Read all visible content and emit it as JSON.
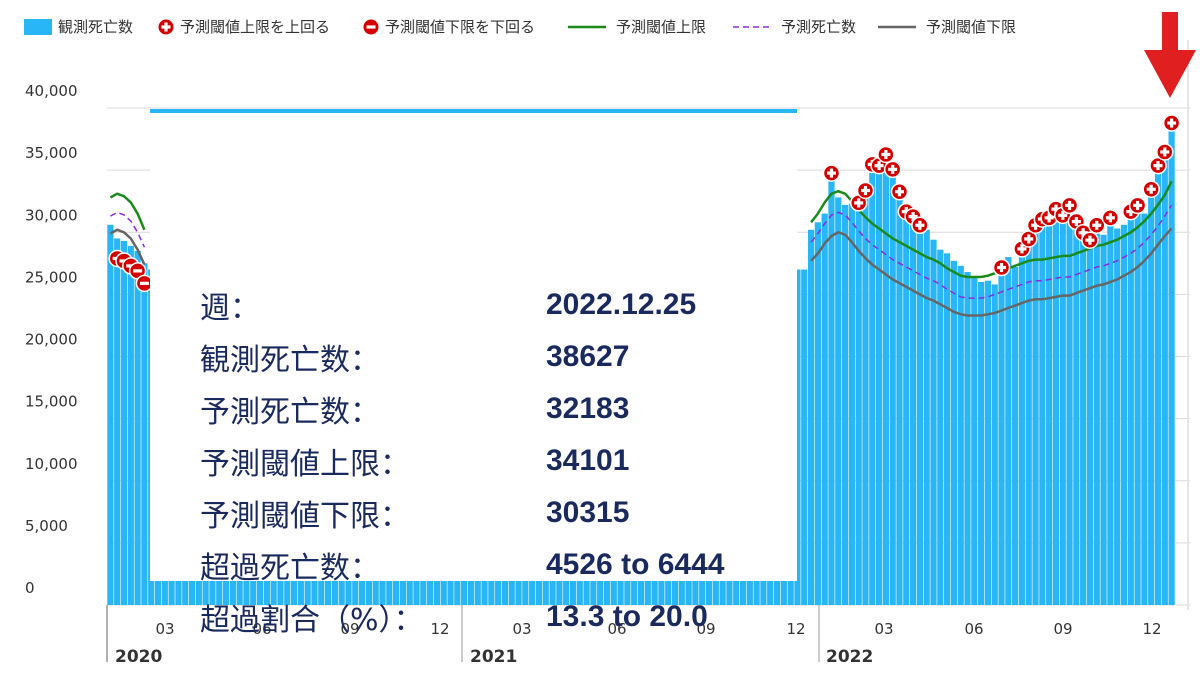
{
  "legend": [
    {
      "label": "観測死亡数",
      "kind": "bar",
      "color": "#29b6f6"
    },
    {
      "label": "予測閾値上限を上回る",
      "kind": "plus",
      "color": "#d50000"
    },
    {
      "label": "予測閾値下限を下回る",
      "kind": "minus",
      "color": "#d50000"
    },
    {
      "label": "予測閾値上限",
      "kind": "line",
      "color": "#1a8a1a"
    },
    {
      "label": "予測死亡数",
      "kind": "dash",
      "color": "#8a2be2"
    },
    {
      "label": "予測閾値下限",
      "kind": "line",
      "color": "#666666"
    }
  ],
  "tooltip": {
    "rows": [
      {
        "label": "週：",
        "value": "2022.12.25"
      },
      {
        "label": "観測死亡数：",
        "value": "38627"
      },
      {
        "label": "予測死亡数：",
        "value": "32183"
      },
      {
        "label": "予測閾値上限：",
        "value": "34101"
      },
      {
        "label": "予測閾値下限：",
        "value": "30315"
      },
      {
        "label": "超過死亡数：",
        "value": "4526 to 6444"
      },
      {
        "label": "超過割合（%）：",
        "value": "13.3 to 20.0"
      }
    ]
  },
  "chart_data": {
    "type": "bar",
    "ylim": [
      0,
      40000
    ],
    "yticks": [
      "0",
      "5,000",
      "10,000",
      "15,000",
      "20,000",
      "25,000",
      "30,000",
      "35,000",
      "40,000"
    ],
    "xticks": [
      "03",
      "06",
      "09",
      "12",
      "03",
      "06",
      "09",
      "12",
      "03",
      "06",
      "09",
      "12"
    ],
    "years": [
      "2020",
      "2021",
      "2022"
    ],
    "colors": {
      "bar": "#29b6f6",
      "upper": "#1a8a1a",
      "expected": "#8a2be2",
      "lower": "#666666",
      "marker": "#d50000",
      "arrow": "#e02020"
    },
    "series_2020_start": {
      "observed": [
        30600,
        29500,
        29300,
        28900,
        28500,
        27500
      ],
      "upper": [
        32800,
        33100,
        32900,
        32400,
        31500,
        30200
      ],
      "expected": [
        31300,
        31600,
        31400,
        30900,
        30000,
        28800
      ],
      "lower": [
        29900,
        30200,
        30000,
        29500,
        28600,
        27400
      ],
      "flags": [
        "",
        "minus",
        "minus",
        "minus",
        "minus",
        "minus"
      ]
    },
    "series_2022": {
      "observed": [
        30200,
        30800,
        31500,
        34600,
        32800,
        32200,
        32300,
        32200,
        33200,
        35300,
        35200,
        36100,
        34900,
        33100,
        31500,
        31100,
        30400,
        30200,
        29400,
        28600,
        28300,
        27700,
        27300,
        26800,
        26400,
        26000,
        26100,
        25800,
        27000,
        28000,
        27200,
        28500,
        29300,
        30400,
        30900,
        31000,
        31700,
        31200,
        32000,
        30700,
        29800,
        29200,
        30400,
        29800,
        31000,
        30300,
        30600,
        31500,
        32000,
        31500,
        33300,
        35200,
        36300,
        38627
      ],
      "upper": [
        30800,
        31500,
        32400,
        33100,
        33300,
        33100,
        32500,
        31800,
        31200,
        30700,
        30300,
        29900,
        29500,
        29200,
        28900,
        28600,
        28300,
        28000,
        27800,
        27500,
        27100,
        26800,
        26500,
        26400,
        26400,
        26400,
        26500,
        26700,
        26900,
        27100,
        27300,
        27500,
        27700,
        27800,
        27800,
        27900,
        28000,
        28100,
        28100,
        28300,
        28500,
        28700,
        28900,
        29000,
        29200,
        29400,
        29700,
        30000,
        30400,
        30900,
        31500,
        32200,
        33000,
        34101
      ],
      "expected": [
        29200,
        29900,
        30700,
        31400,
        31600,
        31400,
        30800,
        30100,
        29500,
        29000,
        28600,
        28200,
        27800,
        27500,
        27200,
        26900,
        26600,
        26300,
        26100,
        25800,
        25400,
        25100,
        24800,
        24700,
        24700,
        24700,
        24800,
        25000,
        25200,
        25400,
        25600,
        25800,
        26000,
        26100,
        26100,
        26200,
        26300,
        26400,
        26400,
        26600,
        26800,
        27000,
        27200,
        27300,
        27500,
        27700,
        28000,
        28300,
        28700,
        29200,
        29800,
        30500,
        31300,
        32183
      ],
      "lower": [
        27700,
        28300,
        29100,
        29700,
        30000,
        29800,
        29200,
        28500,
        27900,
        27400,
        27000,
        26600,
        26200,
        25900,
        25600,
        25300,
        25000,
        24700,
        24500,
        24200,
        23900,
        23600,
        23400,
        23300,
        23300,
        23300,
        23400,
        23500,
        23700,
        23900,
        24100,
        24300,
        24500,
        24600,
        24600,
        24700,
        24800,
        24900,
        24900,
        25100,
        25300,
        25500,
        25700,
        25800,
        26000,
        26200,
        26500,
        26800,
        27200,
        27700,
        28300,
        29000,
        29700,
        30315
      ],
      "flags": [
        "",
        "",
        "",
        "plus",
        "",
        "",
        "",
        "plus",
        "plus",
        "plus",
        "plus",
        "plus",
        "plus",
        "plus",
        "plus",
        "plus",
        "plus",
        "",
        "",
        "",
        "",
        "",
        "",
        "",
        "",
        "",
        "",
        "",
        "plus",
        "",
        "",
        "plus",
        "plus",
        "plus",
        "plus",
        "plus",
        "plus",
        "plus",
        "plus",
        "plus",
        "plus",
        "plus",
        "plus",
        "",
        "plus",
        "",
        "",
        "plus",
        "plus",
        "",
        "plus",
        "plus",
        "plus",
        "plus"
      ]
    }
  }
}
